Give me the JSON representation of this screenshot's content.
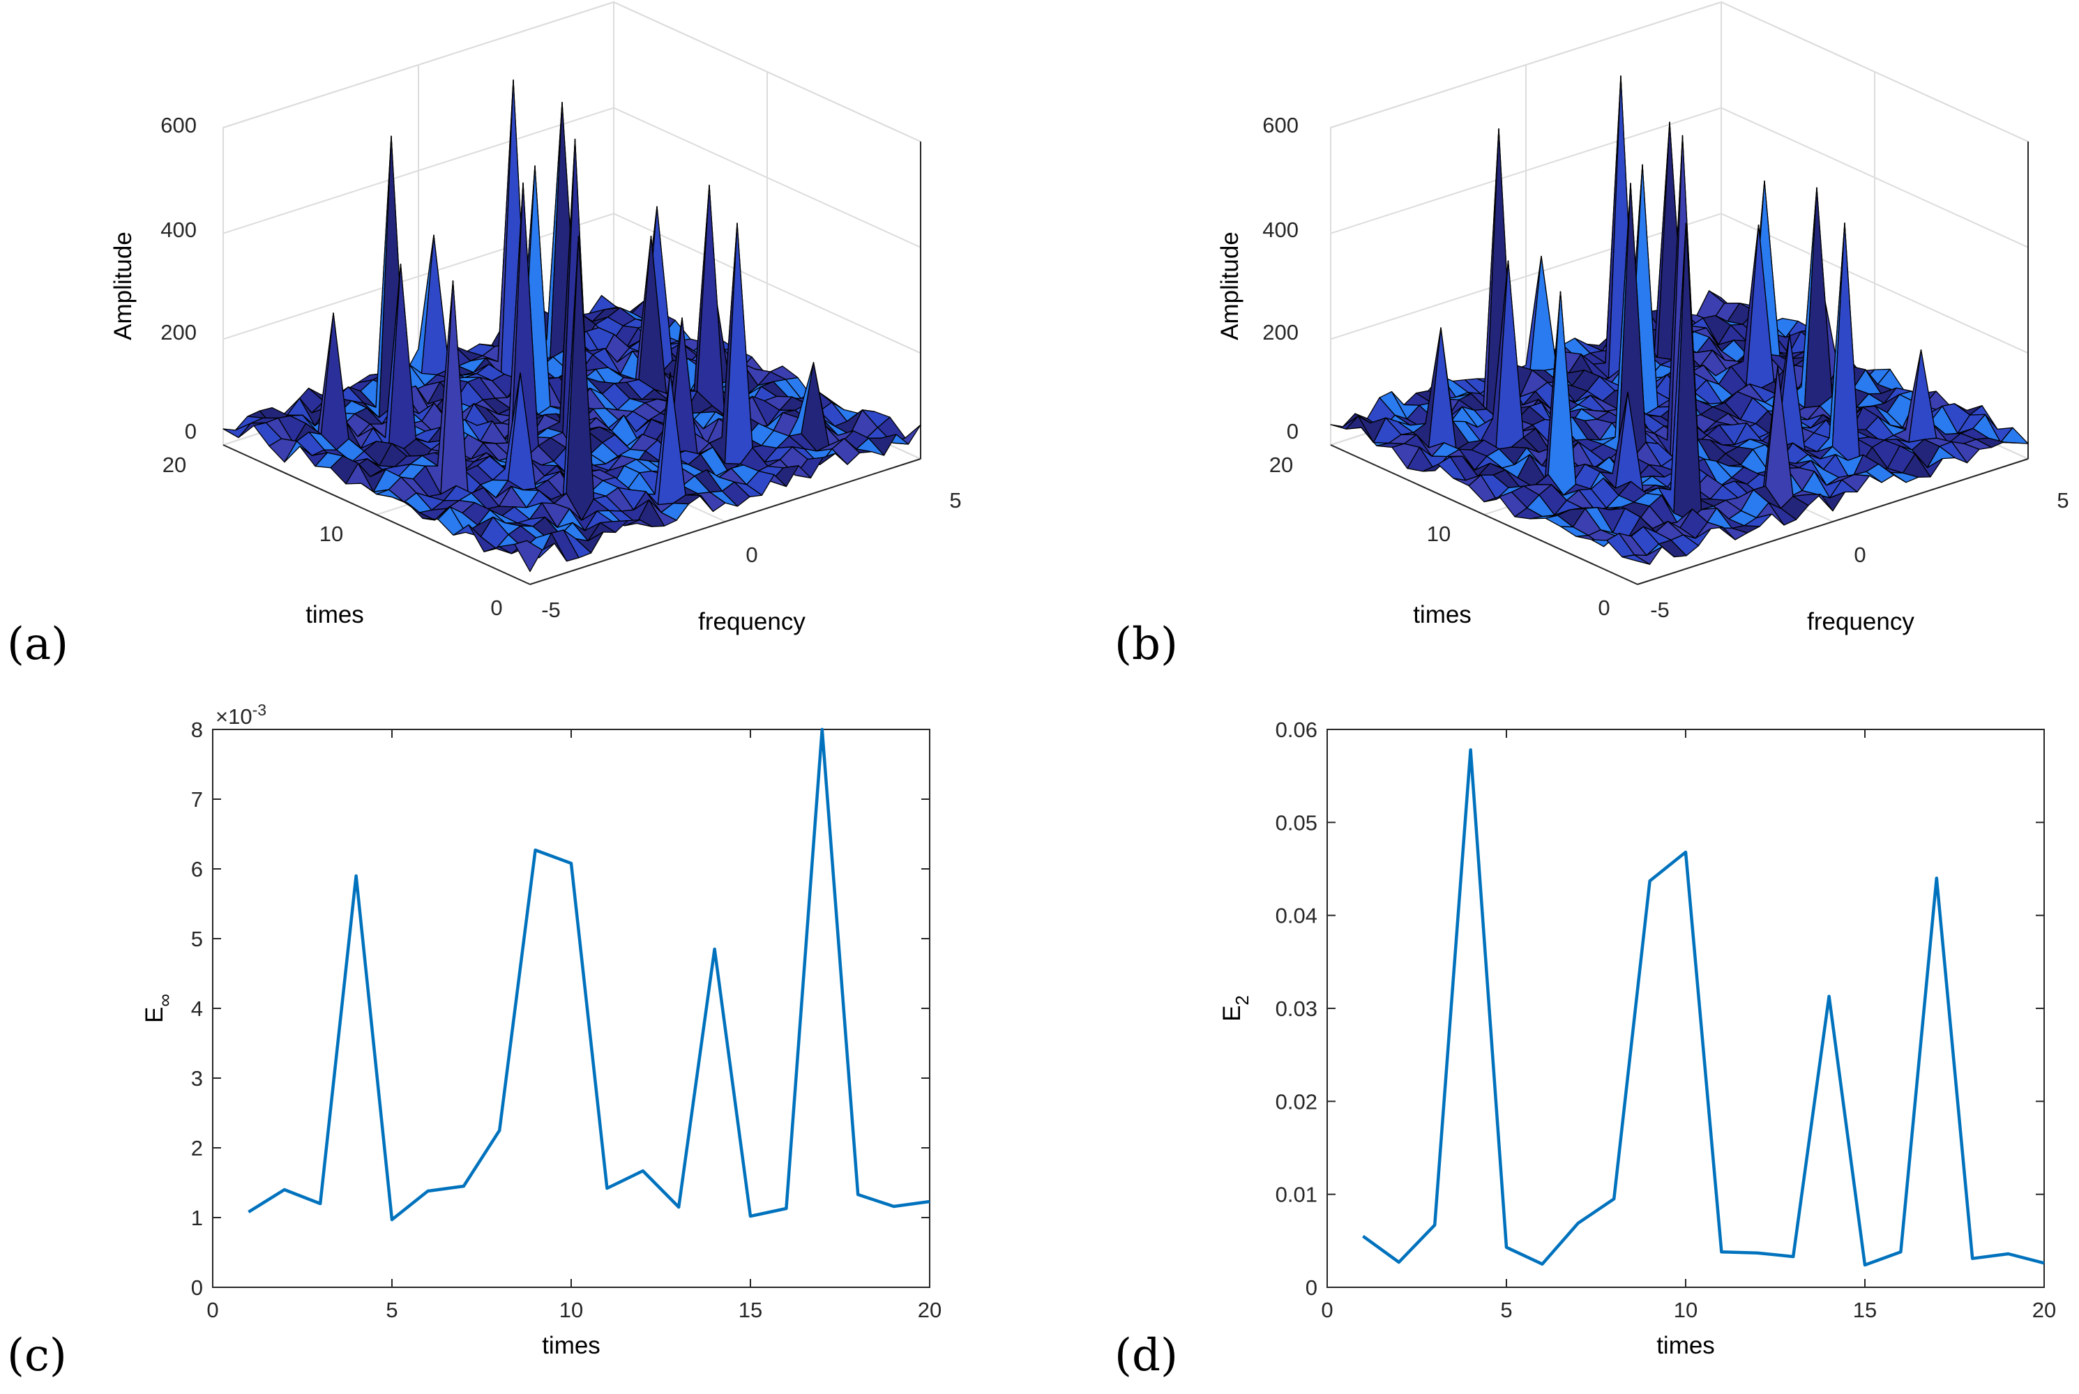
{
  "panels": {
    "a": {
      "letter": "(a)"
    },
    "b": {
      "letter": "(b)"
    },
    "c": {
      "letter": "(c)"
    },
    "d": {
      "letter": "(d)"
    }
  },
  "surface_axes": {
    "zlabel": "Amplitude",
    "xlabel": "times",
    "ylabel": "frequency",
    "z_ticks": [
      "0",
      "200",
      "400",
      "600"
    ],
    "x_ticks": [
      "0",
      "10",
      "20"
    ],
    "y_ticks": [
      "-5",
      "0",
      "5"
    ]
  },
  "chart_data": [
    {
      "panel": "a",
      "type": "surface",
      "xlabel": "times",
      "ylabel": "frequency",
      "zlabel": "Amplitude",
      "xlim": [
        0,
        20
      ],
      "ylim": [
        -5,
        5
      ],
      "zlim": [
        0,
        600
      ],
      "colors": {
        "face_dark": "#23257a",
        "face_mid": "#2f48c8",
        "face_light": "#2a7af0",
        "edge": "#000000"
      }
    },
    {
      "panel": "b",
      "type": "surface",
      "xlabel": "times",
      "ylabel": "frequency",
      "zlabel": "Amplitude",
      "xlim": [
        0,
        20
      ],
      "ylim": [
        -5,
        5
      ],
      "zlim": [
        0,
        600
      ],
      "colors": {
        "face_dark": "#23257a",
        "face_mid": "#2f48c8",
        "face_light": "#2a7af0",
        "edge": "#000000"
      }
    },
    {
      "panel": "c",
      "type": "line",
      "xlabel": "times",
      "ylabel": "E",
      "ylabel_sub": "∞",
      "exponent_prefix": "×10",
      "exponent_value": "-3",
      "xlim": [
        0,
        20
      ],
      "ylim": [
        0,
        8
      ],
      "x_ticks": [
        "0",
        "5",
        "10",
        "15",
        "20"
      ],
      "y_ticks": [
        "0",
        "1",
        "2",
        "3",
        "4",
        "5",
        "6",
        "7",
        "8"
      ],
      "color": "#0072bd",
      "x": [
        1,
        2,
        3,
        4,
        5,
        6,
        7,
        8,
        9,
        10,
        11,
        12,
        13,
        14,
        15,
        16,
        17,
        18,
        19,
        20
      ],
      "y": [
        1.08,
        1.4,
        1.2,
        5.9,
        0.97,
        1.38,
        1.45,
        2.25,
        6.27,
        6.08,
        1.42,
        1.67,
        1.15,
        4.85,
        1.02,
        1.13,
        8.0,
        1.33,
        1.16,
        1.23
      ]
    },
    {
      "panel": "d",
      "type": "line",
      "xlabel": "times",
      "ylabel": "E",
      "ylabel_sub": "2",
      "xlim": [
        0,
        20
      ],
      "ylim": [
        0,
        0.06
      ],
      "x_ticks": [
        "0",
        "5",
        "10",
        "15",
        "20"
      ],
      "y_ticks": [
        "0",
        "0.01",
        "0.02",
        "0.03",
        "0.04",
        "0.05",
        "0.06"
      ],
      "color": "#0072bd",
      "x": [
        1,
        2,
        3,
        4,
        5,
        6,
        7,
        8,
        9,
        10,
        11,
        12,
        13,
        14,
        15,
        16,
        17,
        18,
        19,
        20
      ],
      "y": [
        0.0055,
        0.0027,
        0.0067,
        0.0578,
        0.0043,
        0.0025,
        0.0069,
        0.0095,
        0.0437,
        0.0468,
        0.0038,
        0.0037,
        0.0033,
        0.0313,
        0.0024,
        0.0038,
        0.044,
        0.0031,
        0.0036,
        0.0026
      ]
    }
  ]
}
